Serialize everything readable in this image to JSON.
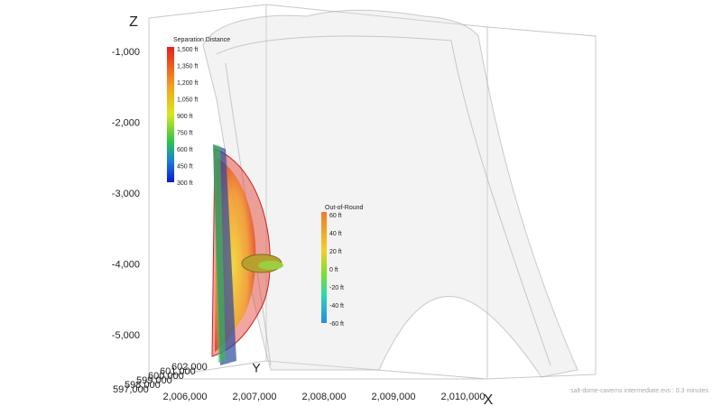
{
  "z_axis": {
    "title": "Z",
    "ticks": [
      "-1,000",
      "-2,000",
      "-3,000",
      "-4,000",
      "-5,000"
    ]
  },
  "x_axis": {
    "title": "X",
    "ticks": [
      "2,006,000",
      "2,007,000",
      "2,008,000",
      "2,009,000",
      "2,010,000"
    ]
  },
  "y_axis": {
    "title": "Y",
    "ticks": [
      "597,000",
      "598,000",
      "599,000",
      "600,000",
      "601,000",
      "602,000"
    ]
  },
  "legends": [
    {
      "title": "Separation Distance",
      "labels": [
        "1,500 ft",
        "1,350 ft",
        "1,200 ft",
        "1,050 ft",
        "900 ft",
        "750 ft",
        "600 ft",
        "450 ft",
        "300 ft"
      ]
    },
    {
      "title": "Out-of-Round",
      "labels": [
        "60 ft",
        "40 ft",
        "20 ft",
        "0 ft",
        "-20 ft",
        "-40 ft",
        "-60 ft"
      ]
    }
  ],
  "footer": "salt-dome-caverns intermediate.evs : 0.3 minutes"
}
